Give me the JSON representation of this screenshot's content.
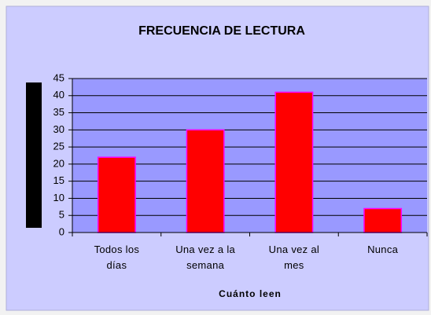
{
  "chart_data": {
    "type": "bar",
    "title": "FRECUENCIA DE LECTURA",
    "x_label": "Cuánto leen",
    "categories": [
      "Todos los días",
      "Una vez a la semana",
      "Una vez al mes",
      "Nunca"
    ],
    "values": [
      22,
      30,
      41,
      7
    ],
    "color": "#ff0000",
    "ylim": [
      0,
      45
    ],
    "yticks": [
      0,
      5,
      10,
      15,
      20,
      25,
      30,
      35,
      40,
      45
    ],
    "grid": true
  }
}
